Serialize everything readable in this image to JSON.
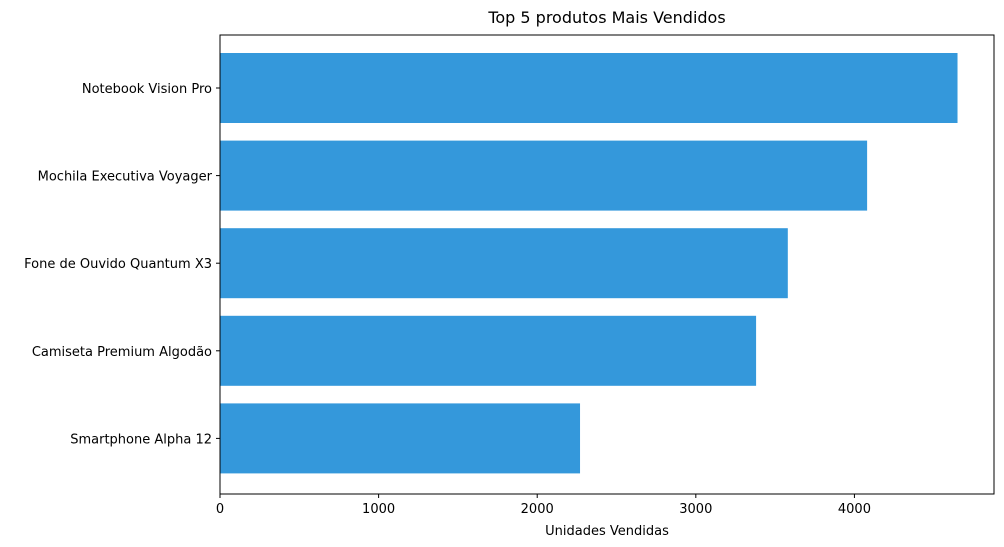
{
  "chart_data": {
    "type": "bar",
    "orientation": "horizontal",
    "title": "Top 5 produtos Mais Vendidos",
    "xlabel": "Unidades Vendidas",
    "ylabel": "",
    "categories": [
      "Notebook Vision Pro",
      "Mochila Executiva Voyager",
      "Fone de Ouvido Quantum X3",
      "Camiseta Premium Algodão",
      "Smartphone Alpha 12"
    ],
    "values": [
      4650,
      4080,
      3580,
      3380,
      2270
    ],
    "xlim": [
      0,
      4880
    ],
    "xticks": [
      0,
      1000,
      2000,
      3000,
      4000
    ],
    "xtick_labels": [
      "0",
      "1000",
      "2000",
      "3000",
      "4000"
    ],
    "bar_color": "#3498db",
    "grid": false,
    "legend": "none"
  }
}
